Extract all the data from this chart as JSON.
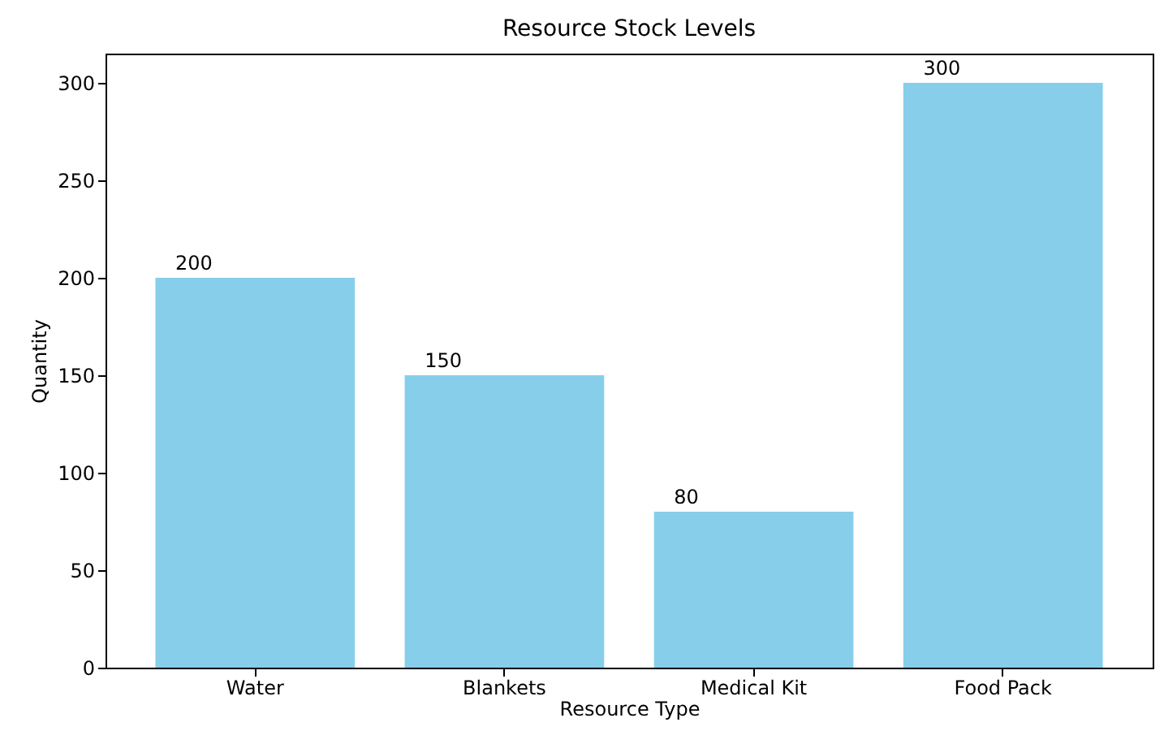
{
  "chart_data": {
    "type": "bar",
    "title": "Resource Stock Levels",
    "xlabel": "Resource Type",
    "ylabel": "Quantity",
    "categories": [
      "Water",
      "Blankets",
      "Medical Kit",
      "Food Pack"
    ],
    "values": [
      200,
      150,
      80,
      300
    ],
    "color": "#87ceeb",
    "ylim": [
      0,
      315
    ],
    "yticks": [
      0,
      50,
      100,
      150,
      200,
      250,
      300
    ],
    "grid": false,
    "data_labels": true
  }
}
